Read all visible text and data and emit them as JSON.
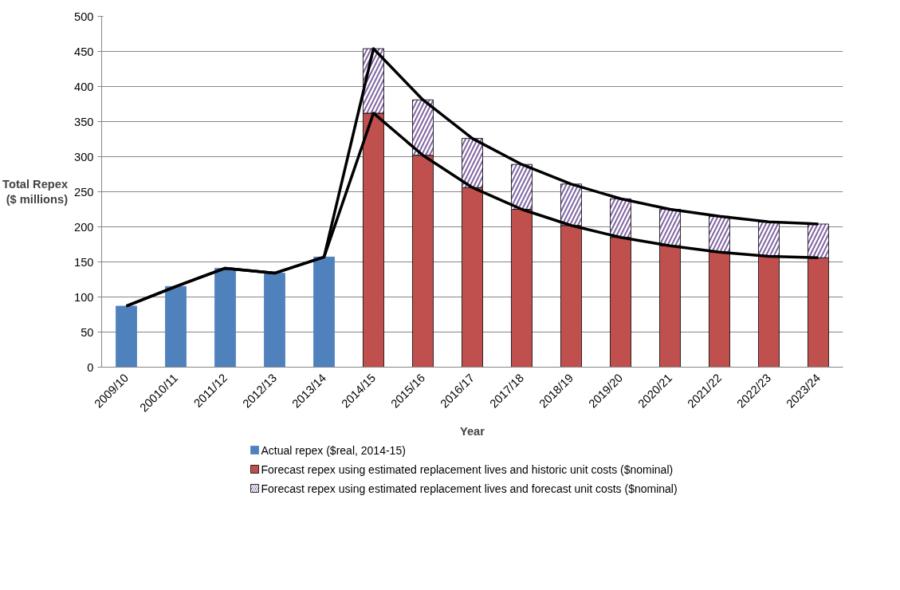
{
  "chart_data": {
    "type": "bar",
    "stacked": true,
    "xlabel": "Year",
    "ylabel": "Total Repex\n($ millions)",
    "categories": [
      "2009/10",
      "20010/11",
      "2011/12",
      "2012/13",
      "2013/14",
      "2014/15",
      "2015/16",
      "2016/17",
      "2017/18",
      "2018/19",
      "2019/20",
      "2020/21",
      "2021/22",
      "2022/23",
      "2023/24"
    ],
    "series": [
      {
        "name": "Actual repex ($real, 2014-15)",
        "color": "#4f81bd",
        "values": [
          87,
          115,
          141,
          134,
          157,
          null,
          null,
          null,
          null,
          null,
          null,
          null,
          null,
          null,
          null
        ]
      },
      {
        "name": "Forecast repex using estimated replacement  lives and historic unit costs ($nominal)",
        "color": "#c0504d",
        "values": [
          null,
          null,
          null,
          null,
          null,
          362,
          302,
          256,
          225,
          202,
          185,
          173,
          164,
          158,
          156
        ]
      },
      {
        "name": "Forecast repex using estimated replacement lives and forecast unit costs ($nominal)",
        "color": "#8064a2",
        "values": [
          null,
          null,
          null,
          null,
          null,
          92,
          79,
          70,
          64,
          59,
          55,
          52,
          51,
          49,
          48
        ]
      },
      {
        "type": "line",
        "color": "#000000",
        "values": [
          87,
          115,
          141,
          134,
          157,
          362,
          302,
          256,
          225,
          202,
          185,
          173,
          164,
          158,
          156
        ]
      },
      {
        "type": "line",
        "color": "#000000",
        "values": [
          87,
          115,
          141,
          134,
          157,
          454,
          381,
          326,
          289,
          261,
          240,
          225,
          215,
          207,
          204
        ]
      }
    ],
    "ylim": [
      0,
      500
    ],
    "yticks": [
      0,
      50,
      100,
      150,
      200,
      250,
      300,
      350,
      400,
      450,
      500
    ],
    "grid": "y",
    "legend": "bottom",
    "marker": "none",
    "line_style": "solid"
  }
}
